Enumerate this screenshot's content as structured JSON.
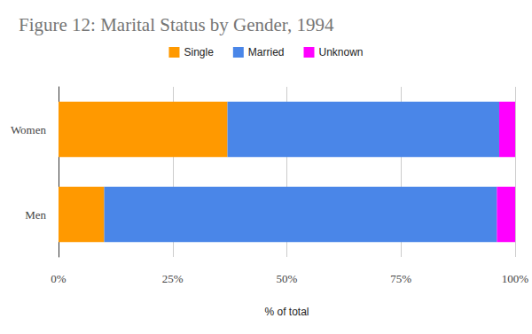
{
  "chart_data": {
    "type": "bar",
    "title": "Figure 12: Marital Status by Gender, 1994",
    "orientation": "horizontal",
    "stacked": true,
    "grid": true,
    "legend": "top",
    "categories": [
      "Women",
      "Men"
    ],
    "series": [
      {
        "name": "Single",
        "color": "#ff9900",
        "values": [
          37,
          10
        ]
      },
      {
        "name": "Married",
        "color": "#4a86e8",
        "values": [
          59.5,
          86
        ]
      },
      {
        "name": "Unknown",
        "color": "#ff00ff",
        "values": [
          3.5,
          4
        ]
      }
    ],
    "xlabel": "% of total",
    "xlim": [
      0,
      100
    ],
    "xticks": [
      {
        "value": 0,
        "label": "0%"
      },
      {
        "value": 25,
        "label": "25%"
      },
      {
        "value": 50,
        "label": "50%"
      },
      {
        "value": 75,
        "label": "75%"
      },
      {
        "value": 100,
        "label": "100%"
      }
    ]
  }
}
